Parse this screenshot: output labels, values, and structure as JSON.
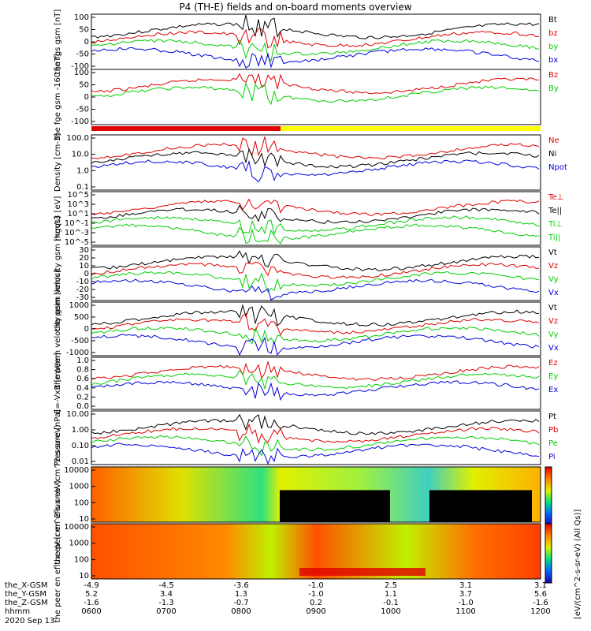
{
  "title": "P4 (TH-E) fields and on-board moments overview",
  "date_label": "2020 Sep 13",
  "colorbar_label": "[eV/(cm^2-s-sr-eV) (All Qs)]",
  "colorbar_ticks": [
    "10^6",
    "10^5",
    "10^4",
    "10^3",
    "10^2"
  ],
  "bottom_axis": {
    "rows": [
      {
        "name": "the_X-GSM",
        "values": [
          "-4.9",
          "-4.5",
          "-3.6",
          "-1.0",
          "2.5",
          "3.1",
          "3.1"
        ]
      },
      {
        "name": "the_Y-GSM",
        "values": [
          "5.2",
          "3.4",
          "1.3",
          "-1.0",
          "1.1",
          "3.7",
          "5.6"
        ]
      },
      {
        "name": "the_Z-GSM",
        "values": [
          "-1.6",
          "-1.3",
          "-0.7",
          "0.2",
          "-0.1",
          "-1.0",
          "-1.6"
        ]
      },
      {
        "name": "hhmm",
        "values": [
          "0600",
          "0700",
          "0800",
          "0900",
          "1000",
          "1100",
          "1200"
        ]
      }
    ]
  },
  "colors": {
    "black": "#000000",
    "red": "#e00000",
    "green": "#00d000",
    "blue": "#0000e0",
    "yellow": "#ffff00"
  },
  "chart_data": [
    {
      "type": "line",
      "panel": "fgs",
      "ylabel": "the fgs gsm [nT]",
      "ylim": [
        -100,
        100
      ],
      "ticks": [
        "100",
        "50",
        "0",
        "-50",
        "-100"
      ],
      "tick_values": [
        100,
        50,
        0,
        -50,
        -100
      ],
      "legend": [
        {
          "name": "Bt",
          "color": "black"
        },
        {
          "name": "bz",
          "color": "red"
        },
        {
          "name": "by",
          "color": "green"
        },
        {
          "name": "bx",
          "color": "blue"
        }
      ]
    },
    {
      "type": "line",
      "panel": "fge",
      "ylabel": "the fge gsm -160 [nT]",
      "ylim": [
        -125,
        125
      ],
      "ticks": [
        "100",
        "50",
        "0",
        "-50",
        "-100"
      ],
      "tick_values": [
        100,
        50,
        0,
        -50,
        -100
      ],
      "legend": [
        {
          "name": "Bz",
          "color": "red"
        },
        {
          "name": "By",
          "color": "green"
        }
      ]
    },
    {
      "type": "line",
      "panel": "density",
      "ylabel": "Density [cm-3]",
      "log": true,
      "ylim": [
        0.05,
        200
      ],
      "ticks": [
        "100.0",
        "10.0",
        "1.0",
        "0.1"
      ],
      "tick_values": [
        100,
        10,
        1,
        0.1
      ],
      "legend": [
        {
          "name": "Ne",
          "color": "red"
        },
        {
          "name": "Ni",
          "color": "black"
        },
        {
          "name": "Npot",
          "color": "blue"
        }
      ]
    },
    {
      "type": "line",
      "panel": "temperature",
      "ylabel": "mgqt3 [eV]",
      "log": true,
      "ticks": [
        "10^5",
        "10^3",
        "10^1",
        "10^-1",
        "10^-3",
        "10^-5"
      ],
      "legend": [
        {
          "name": "Te⊥",
          "color": "red"
        },
        {
          "name": "Te||",
          "color": "black"
        },
        {
          "name": "Ti⊥",
          "color": "green"
        },
        {
          "name": "Ti||",
          "color": "green"
        }
      ]
    },
    {
      "type": "line",
      "panel": "vi",
      "ylabel": "the peim velocity gsm [km/s]",
      "ylim": [
        -30,
        30
      ],
      "ticks": [
        "30",
        "20",
        "10",
        "0",
        "-10",
        "-20",
        "-30"
      ],
      "tick_values": [
        30,
        20,
        10,
        0,
        -10,
        -20,
        -30
      ],
      "legend": [
        {
          "name": "Vt",
          "color": "black"
        },
        {
          "name": "Vz",
          "color": "red"
        },
        {
          "name": "Vy",
          "color": "green"
        },
        {
          "name": "Vx",
          "color": "blue"
        }
      ]
    },
    {
      "type": "line",
      "panel": "ve",
      "ylabel": "the peem velocity gsm [km/s]",
      "ylim": [
        -1000,
        1000
      ],
      "ticks": [
        "1000",
        "500",
        "0",
        "-500",
        "-1000"
      ],
      "tick_values": [
        1000,
        500,
        0,
        -500,
        -1000
      ],
      "legend": [
        {
          "name": "Vt",
          "color": "black"
        },
        {
          "name": "Vz",
          "color": "red"
        },
        {
          "name": "Vy",
          "color": "green"
        },
        {
          "name": "Vx",
          "color": "blue"
        }
      ]
    },
    {
      "type": "line",
      "panel": "efield",
      "ylabel": "E=-VxB [mV/m]",
      "ylim": [
        0,
        1
      ],
      "ticks": [
        "1.0",
        "0.8",
        "0.6",
        "0.4",
        "0.2",
        "0.0"
      ],
      "tick_values": [
        1,
        0.8,
        0.6,
        0.4,
        0.2,
        0
      ],
      "legend": [
        {
          "name": "Ez",
          "color": "red"
        },
        {
          "name": "Ey",
          "color": "green"
        },
        {
          "name": "Ex",
          "color": "blue"
        }
      ]
    },
    {
      "type": "line",
      "panel": "pressure",
      "ylabel": "Pressure [nPa]",
      "log": true,
      "ylim": [
        0.006,
        20
      ],
      "ticks": [
        "10.00",
        "1.00",
        "0.10",
        "0.01"
      ],
      "tick_values": [
        10,
        1,
        0.1,
        0.01
      ],
      "legend": [
        {
          "name": "Pt",
          "color": "black"
        },
        {
          "name": "Pb",
          "color": "red"
        },
        {
          "name": "Pe",
          "color": "green"
        },
        {
          "name": "Pi",
          "color": "blue"
        }
      ]
    },
    {
      "type": "heatmap",
      "panel": "ion-spectrogram",
      "ylabel": "the peir en eflux eV (cm^2-s-sr-eV)",
      "ticks": [
        "10000",
        "1000",
        "100",
        "10"
      ]
    },
    {
      "type": "heatmap",
      "panel": "electron-spectrogram",
      "ylabel": "the peer en eflux eV (cm^2-s-sr-eV)",
      "ticks": [
        "10000",
        "1000",
        "100",
        "10"
      ]
    }
  ]
}
